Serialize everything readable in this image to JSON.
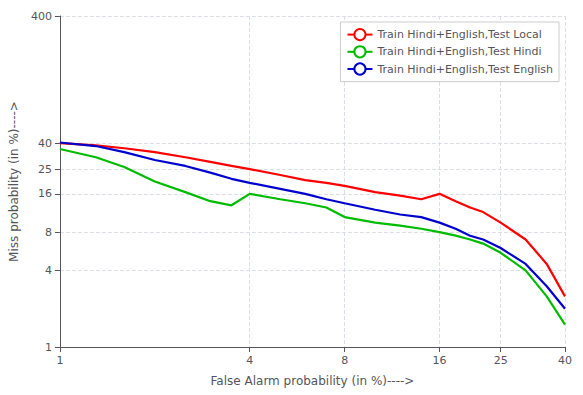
{
  "chart_data": {
    "type": "line",
    "xlabel": "False Alarm probability (in %)---->",
    "ylabel": "Miss probability (in %)---->",
    "log": true,
    "grid": true,
    "legend": "upper right",
    "xlim": [
      1,
      40
    ],
    "ylim": [
      1,
      400
    ],
    "xticks": [
      1,
      4,
      8,
      16,
      25,
      40
    ],
    "yticks": [
      1,
      4,
      8,
      16,
      25,
      40,
      400
    ],
    "x": [
      1.0,
      1.3,
      1.6,
      2.0,
      2.5,
      3.0,
      3.5,
      4.0,
      5.0,
      6.0,
      7.0,
      8.0,
      10.0,
      12.0,
      14.0,
      16.0,
      18.0,
      20.0,
      22.0,
      25.0,
      30.0,
      35.0,
      40.0
    ],
    "series": [
      {
        "name": "Train Hindi+English,Test Local",
        "color": "#ff0000",
        "values": [
          40.0,
          38.5,
          36.5,
          34.0,
          31.0,
          28.5,
          26.5,
          25.0,
          22.5,
          20.5,
          19.5,
          18.5,
          16.5,
          15.5,
          14.5,
          16.0,
          14.0,
          12.5,
          11.5,
          9.5,
          7.0,
          4.5,
          2.5
        ]
      },
      {
        "name": "Train Hindi+English,Test Hindi",
        "color": "#00bb00",
        "values": [
          36.0,
          31.0,
          26.0,
          20.0,
          16.5,
          14.0,
          13.0,
          16.0,
          14.5,
          13.5,
          12.5,
          10.5,
          9.5,
          9.0,
          8.5,
          8.0,
          7.5,
          7.0,
          6.5,
          5.5,
          4.0,
          2.5,
          1.5
        ]
      },
      {
        "name": "Train Hindi+English,Test English",
        "color": "#0000cc",
        "values": [
          40.5,
          38.0,
          34.0,
          29.5,
          26.5,
          23.5,
          21.0,
          19.5,
          17.5,
          16.0,
          14.5,
          13.5,
          12.0,
          11.0,
          10.5,
          9.5,
          8.5,
          7.5,
          7.0,
          6.0,
          4.5,
          3.0,
          2.0
        ]
      }
    ]
  }
}
